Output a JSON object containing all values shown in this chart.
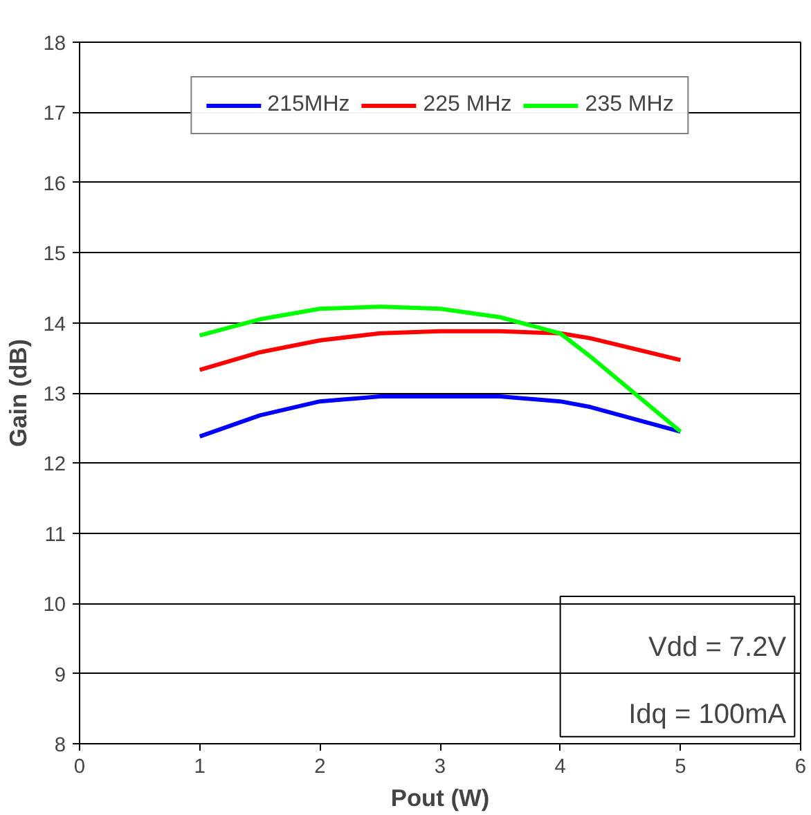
{
  "chart_data": {
    "type": "line",
    "xlabel": "Pout (W)",
    "ylabel": "Gain (dB)",
    "xlim": [
      0,
      6
    ],
    "xticks": [
      0,
      1,
      2,
      3,
      4,
      5,
      6
    ],
    "ylim": [
      8,
      18
    ],
    "yticks": [
      8,
      9,
      10,
      11,
      12,
      13,
      14,
      15,
      16,
      17,
      18
    ],
    "grid": "y",
    "legend": "top",
    "marker": "none",
    "line_style": "solid",
    "annotations": [
      "Vdd = 7.2V",
      "Idq = 100mA"
    ],
    "series": [
      {
        "name": "215MHz",
        "color": "#0000ff",
        "x": [
          1,
          1.5,
          2,
          2.5,
          3,
          3.5,
          4,
          4.25,
          5
        ],
        "values": [
          12.38,
          12.68,
          12.88,
          12.95,
          12.95,
          12.95,
          12.88,
          12.8,
          12.45
        ]
      },
      {
        "name": "225 MHz",
        "color": "#ff0000",
        "x": [
          1,
          1.5,
          2,
          2.5,
          3,
          3.5,
          4,
          4.25,
          5
        ],
        "values": [
          13.33,
          13.58,
          13.75,
          13.85,
          13.88,
          13.88,
          13.85,
          13.78,
          13.47
        ]
      },
      {
        "name": "235 MHz",
        "color": "#00ff00",
        "x": [
          1,
          1.5,
          2,
          2.5,
          3,
          3.5,
          4,
          4.25,
          5
        ],
        "values": [
          13.82,
          14.05,
          14.2,
          14.23,
          14.2,
          14.08,
          13.85,
          13.52,
          12.45
        ]
      }
    ]
  }
}
